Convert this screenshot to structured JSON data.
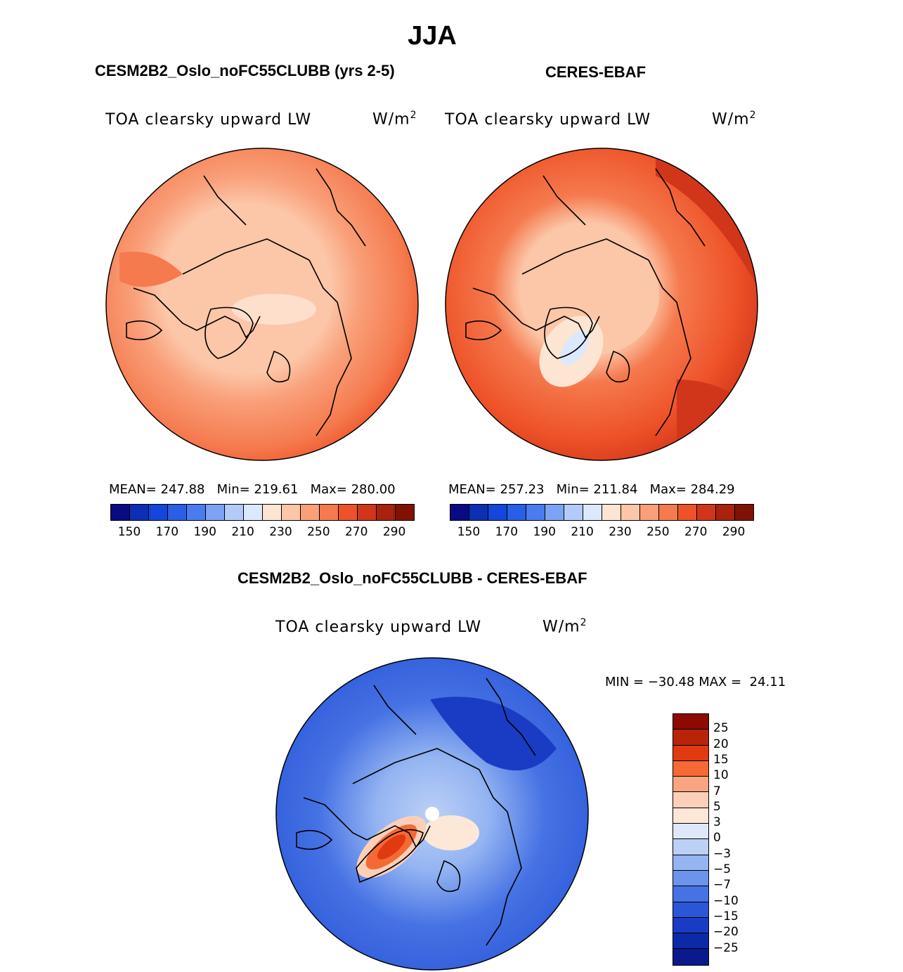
{
  "figure": {
    "title": "JJA"
  },
  "panels": [
    {
      "title": "CESM2B2_Oslo_noFC55CLUBB (yrs 2-5)",
      "variable": "TOA clearsky upward LW",
      "units_base": "W/m",
      "units_exp": "2",
      "stats": {
        "mean_label": "MEAN=",
        "mean": "247.88",
        "min_label": "Min=",
        "min": "219.61",
        "max_label": "Max=",
        "max": "280.00"
      }
    },
    {
      "title": "CERES-EBAF",
      "variable": "TOA clearsky upward LW",
      "units_base": "W/m",
      "units_exp": "2",
      "stats": {
        "mean_label": "MEAN=",
        "mean": "257.23",
        "min_label": "Min=",
        "min": "211.84",
        "max_label": "Max=",
        "max": "284.29"
      }
    },
    {
      "title": "CESM2B2_Oslo_noFC55CLUBB - CERES-EBAF",
      "variable": "TOA clearsky upward LW",
      "units_base": "W/m",
      "units_exp": "2",
      "minmax": {
        "min_label": "MIN =",
        "min": "−30.48",
        "max_label": "MAX =",
        "max": "24.11"
      }
    }
  ],
  "abs_colorbar": {
    "colors": [
      "#0a0a82",
      "#0c2fb4",
      "#1446dc",
      "#285fe6",
      "#4a7cf0",
      "#7ea3f5",
      "#b4cbfa",
      "#dce9fc",
      "#fde5d4",
      "#fcc6a8",
      "#f9a07a",
      "#f57a4e",
      "#ee5228",
      "#d2361a",
      "#a8220e",
      "#801205"
    ],
    "ticks": [
      "150",
      "170",
      "190",
      "210",
      "230",
      "250",
      "270",
      "290"
    ]
  },
  "diff_colorbar": {
    "colors": [
      "#8c0a00",
      "#b82408",
      "#e03a10",
      "#f56a34",
      "#f9a582",
      "#fcd0b8",
      "#fde8d8",
      "#dfe8f8",
      "#bcd0f6",
      "#94b4f2",
      "#6c94ec",
      "#4672e4",
      "#2a56d8",
      "#1a3cc4",
      "#0c2aa8",
      "#0a1a8c"
    ],
    "ticks": [
      "25",
      "20",
      "15",
      "10",
      "7",
      "5",
      "3",
      "0",
      "−3",
      "−5",
      "−7",
      "−10",
      "−15",
      "−20",
      "−25"
    ]
  },
  "chart_data": [
    {
      "type": "heatmap",
      "title": "CESM2B2_Oslo_noFC55CLUBB (yrs 2-5)",
      "variable": "TOA clearsky upward LW",
      "units": "W/m2",
      "projection": "north polar stereographic",
      "colorbar_levels": [
        150,
        160,
        170,
        180,
        190,
        200,
        210,
        220,
        230,
        240,
        250,
        260,
        270,
        280,
        290
      ],
      "mean": 247.88,
      "min": 219.61,
      "max": 280.0
    },
    {
      "type": "heatmap",
      "title": "CERES-EBAF",
      "variable": "TOA clearsky upward LW",
      "units": "W/m2",
      "projection": "north polar stereographic",
      "colorbar_levels": [
        150,
        160,
        170,
        180,
        190,
        200,
        210,
        220,
        230,
        240,
        250,
        260,
        270,
        280,
        290
      ],
      "mean": 257.23,
      "min": 211.84,
      "max": 284.29
    },
    {
      "type": "heatmap",
      "title": "CESM2B2_Oslo_noFC55CLUBB - CERES-EBAF",
      "variable": "TOA clearsky upward LW",
      "units": "W/m2",
      "projection": "north polar stereographic",
      "colorbar_levels": [
        25,
        20,
        15,
        10,
        7,
        5,
        3,
        0,
        -3,
        -5,
        -7,
        -10,
        -15,
        -20,
        -25
      ],
      "min": -30.48,
      "max": 24.11
    }
  ]
}
